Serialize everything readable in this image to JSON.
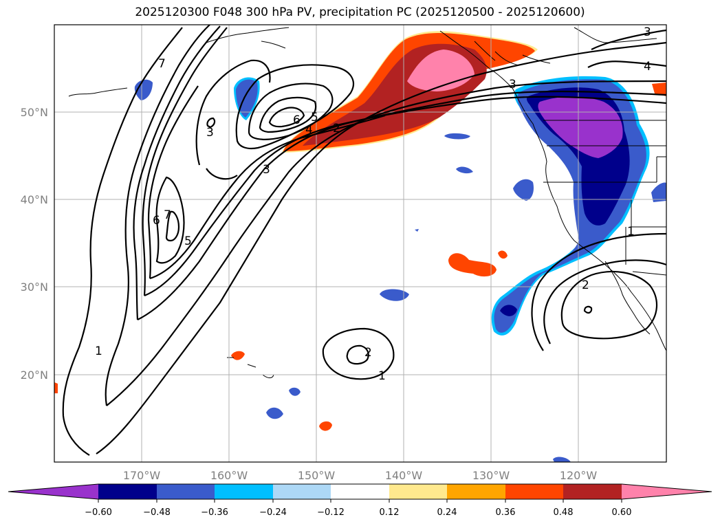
{
  "title": "2025120300 F048 300 hPa PV, precipitation PC (2025120500 - 2025120600)",
  "colors": {
    "m060": "#9932cc",
    "m048": "#00008b",
    "m036": "#3a5bcb",
    "m024": "#00bfff",
    "m012": "#add8f6",
    "neutral": "#ffffff",
    "p012": "#ffe98e",
    "p024": "#ffa500",
    "p036": "#ff4500",
    "p048": "#b22222",
    "p060": "#ff82ab"
  },
  "lon_labels": [
    "170°W",
    "160°W",
    "150°W",
    "140°W",
    "130°W",
    "120°W"
  ],
  "lat_labels": [
    "50°N",
    "40°N",
    "30°N",
    "20°N"
  ],
  "colorbar": {
    "ticks": [
      "−0.60",
      "−0.48",
      "−0.36",
      "−0.24",
      "−0.12",
      "0.12",
      "0.24",
      "0.36",
      "0.48",
      "0.60"
    ]
  },
  "contour_labels": {
    "c1": "1",
    "c2": "2",
    "c3": "3",
    "c4": "4",
    "c5": "5",
    "c6": "6",
    "c7": "7"
  }
}
